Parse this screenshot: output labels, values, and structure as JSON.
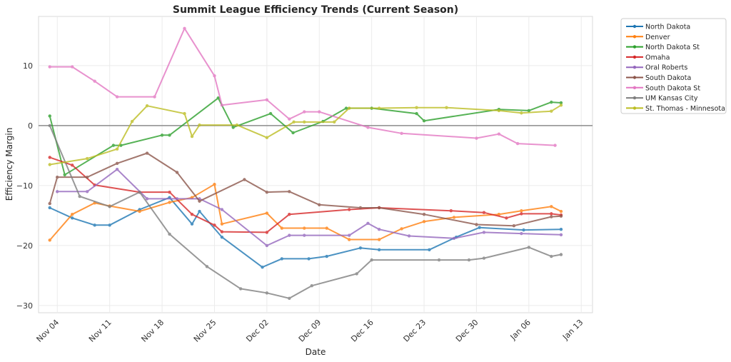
{
  "chart_data": {
    "type": "line",
    "title": "Summit League Efficiency Trends (Current Season)",
    "xlabel": "Date",
    "ylabel": "Efficiency Margin",
    "x_start_date": "Nov 04",
    "x_unit": "days since Nov 04",
    "xlim": [
      -2.5,
      71.5
    ],
    "ylim": [
      -31.2,
      18.2
    ],
    "xticks": [
      {
        "day": 0,
        "label": "Nov 04"
      },
      {
        "day": 7,
        "label": "Nov 11"
      },
      {
        "day": 14,
        "label": "Nov 18"
      },
      {
        "day": 21,
        "label": "Nov 25"
      },
      {
        "day": 28,
        "label": "Dec 02"
      },
      {
        "day": 35,
        "label": "Dec 09"
      },
      {
        "day": 42,
        "label": "Dec 16"
      },
      {
        "day": 49,
        "label": "Dec 23"
      },
      {
        "day": 56,
        "label": "Dec 30"
      },
      {
        "day": 63,
        "label": "Jan 06"
      },
      {
        "day": 70,
        "label": "Jan 13"
      }
    ],
    "yticks": [
      -30,
      -20,
      -10,
      0,
      10
    ],
    "grid": true,
    "reference_line": 0,
    "legend_position": "outside-top-right",
    "series": [
      {
        "name": "North Dakota",
        "color": "#1f77b4",
        "x": [
          -1,
          2,
          5,
          7,
          11,
          15,
          18,
          19,
          22,
          27.4,
          30,
          33.6,
          36,
          40.5,
          43,
          49.7,
          53.3,
          56.4,
          62.3,
          67.3
        ],
        "y": [
          -13.7,
          -15.4,
          -16.6,
          -16.6,
          -14.0,
          -12.0,
          -16.4,
          -14.3,
          -18.6,
          -23.6,
          -22.2,
          -22.2,
          -21.8,
          -20.4,
          -20.7,
          -20.7,
          -18.6,
          -17.0,
          -17.4,
          -17.3
        ]
      },
      {
        "name": "Denver",
        "color": "#ff7f0e",
        "x": [
          -1,
          2,
          5,
          7,
          11,
          15,
          18,
          21,
          22,
          28,
          30,
          33,
          36,
          39,
          43,
          46,
          49,
          53,
          59,
          62,
          66,
          67.3
        ],
        "y": [
          -19.1,
          -14.8,
          -12.9,
          -13.4,
          -14.3,
          -12.8,
          -12.0,
          -9.8,
          -16.4,
          -14.6,
          -17.1,
          -17.1,
          -17.1,
          -19.0,
          -19.0,
          -17.2,
          -16.0,
          -15.3,
          -14.8,
          -14.2,
          -13.5,
          -14.3
        ]
      },
      {
        "name": "North Dakota St",
        "color": "#2ca02c",
        "x": [
          -1,
          1,
          7.5,
          8.5,
          14,
          15,
          21.5,
          23.5,
          28.5,
          31.5,
          35.5,
          38.6,
          42,
          48,
          49,
          59,
          63,
          66,
          67.3
        ],
        "y": [
          1.6,
          -8.2,
          -3.3,
          -3.3,
          -1.6,
          -1.6,
          4.6,
          -0.3,
          2.0,
          -1.2,
          0.7,
          2.9,
          2.9,
          2.0,
          0.8,
          2.7,
          2.5,
          3.9,
          3.8
        ]
      },
      {
        "name": "Omaha",
        "color": "#d62728",
        "x": [
          -1,
          2,
          5,
          11,
          15,
          18,
          21,
          22,
          28,
          31,
          39,
          43,
          52.6,
          57,
          60,
          62,
          66,
          67.3
        ],
        "y": [
          -5.3,
          -6.6,
          -9.9,
          -11.1,
          -11.1,
          -14.8,
          -16.6,
          -17.7,
          -17.8,
          -14.8,
          -14.0,
          -13.7,
          -14.2,
          -14.5,
          -15.4,
          -14.7,
          -14.7,
          -14.9
        ]
      },
      {
        "name": "Oral Roberts",
        "color": "#9467bd",
        "x": [
          0,
          4,
          8,
          12,
          16,
          19,
          22,
          28,
          31,
          33,
          39,
          41.5,
          43,
          47,
          53,
          57,
          62,
          67.3
        ],
        "y": [
          -11.0,
          -11.0,
          -7.3,
          -12.2,
          -12.2,
          -12.2,
          -14.0,
          -20.0,
          -18.3,
          -18.3,
          -18.3,
          -16.3,
          -17.3,
          -18.4,
          -18.8,
          -17.8,
          -18.0,
          -18.2
        ]
      },
      {
        "name": "South Dakota",
        "color": "#8c564b",
        "x": [
          -1,
          0,
          4,
          8,
          12,
          16,
          19,
          25,
          28,
          31,
          35,
          40.5,
          43,
          49,
          56,
          61,
          66,
          67.3
        ],
        "y": [
          -13.0,
          -8.6,
          -8.6,
          -6.3,
          -4.6,
          -7.8,
          -12.6,
          -9.0,
          -11.1,
          -11.0,
          -13.2,
          -13.7,
          -13.7,
          -14.8,
          -16.5,
          -16.7,
          -15.2,
          -15.1
        ]
      },
      {
        "name": "South Dakota St",
        "color": "#e377c2",
        "x": [
          -1,
          2,
          5,
          8,
          13,
          17,
          21,
          22,
          28,
          31,
          33,
          35,
          41.5,
          46,
          56,
          59,
          61.5,
          66.5
        ],
        "y": [
          9.8,
          9.8,
          7.4,
          4.8,
          4.8,
          16.2,
          8.3,
          3.4,
          4.3,
          1.1,
          2.3,
          2.3,
          -0.3,
          -1.3,
          -2.1,
          -1.4,
          -3.0,
          -3.3
        ]
      },
      {
        "name": "UM Kansas City",
        "color": "#7f7f7f",
        "x": [
          -1,
          3,
          7,
          11,
          15,
          20,
          24.5,
          28,
          31,
          34,
          40,
          42,
          51,
          55,
          57,
          63,
          66,
          67.3
        ],
        "y": [
          0.0,
          -11.8,
          -13.5,
          -11.1,
          -18.1,
          -23.5,
          -27.2,
          -27.9,
          -28.8,
          -26.7,
          -24.7,
          -22.4,
          -22.4,
          -22.4,
          -22.1,
          -20.3,
          -21.8,
          -21.5
        ]
      },
      {
        "name": "St. Thomas - Minnesota",
        "color": "#bcbd22",
        "x": [
          -1,
          4,
          8,
          10,
          12,
          17,
          18,
          19,
          24,
          28,
          31.6,
          33,
          37,
          39,
          43,
          48,
          52,
          59,
          62,
          66,
          67.3
        ],
        "y": [
          -6.5,
          -5.5,
          -3.9,
          0.7,
          3.3,
          2.0,
          -1.8,
          0.1,
          0.1,
          -2.0,
          0.6,
          0.6,
          0.6,
          2.9,
          2.9,
          3.0,
          3.0,
          2.5,
          2.1,
          2.4,
          3.4
        ]
      }
    ]
  }
}
